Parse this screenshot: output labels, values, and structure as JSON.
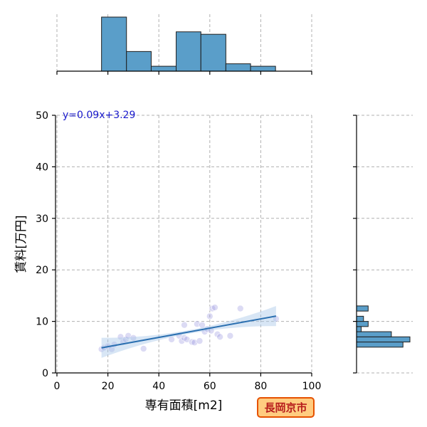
{
  "chart_data": {
    "type": "scatter",
    "title": "",
    "xlabel": "専有面積[m2]",
    "ylabel": "賃料[万円]",
    "xlim": [
      0,
      100
    ],
    "ylim": [
      0,
      50
    ],
    "x_ticks": [
      0,
      20,
      40,
      60,
      80,
      100
    ],
    "y_ticks": [
      0,
      10,
      20,
      30,
      40,
      50
    ],
    "grid": true,
    "annotation": "y=0.09x+3.29",
    "regression": {
      "slope": 0.09,
      "intercept": 3.29,
      "x_range": [
        17.5,
        86
      ]
    },
    "points": [
      {
        "x": 17.5,
        "y": 4.6
      },
      {
        "x": 18.5,
        "y": 4.9
      },
      {
        "x": 20,
        "y": 5.2
      },
      {
        "x": 21.5,
        "y": 4.6
      },
      {
        "x": 22.5,
        "y": 5.5
      },
      {
        "x": 25,
        "y": 7.0
      },
      {
        "x": 26,
        "y": 6.0
      },
      {
        "x": 27,
        "y": 6.5
      },
      {
        "x": 28,
        "y": 7.2
      },
      {
        "x": 30,
        "y": 6.8
      },
      {
        "x": 34,
        "y": 4.7
      },
      {
        "x": 45,
        "y": 6.5
      },
      {
        "x": 48,
        "y": 7.2
      },
      {
        "x": 49,
        "y": 6.2
      },
      {
        "x": 50,
        "y": 6.8
      },
      {
        "x": 50,
        "y": 9.3
      },
      {
        "x": 51,
        "y": 6.5
      },
      {
        "x": 53,
        "y": 6.0
      },
      {
        "x": 54,
        "y": 5.9
      },
      {
        "x": 55,
        "y": 9.5
      },
      {
        "x": 56,
        "y": 6.2
      },
      {
        "x": 57,
        "y": 9.3
      },
      {
        "x": 58,
        "y": 8.0
      },
      {
        "x": 59,
        "y": 8.5
      },
      {
        "x": 60,
        "y": 11.0
      },
      {
        "x": 60.5,
        "y": 8.2
      },
      {
        "x": 61,
        "y": 12.5
      },
      {
        "x": 62,
        "y": 12.7
      },
      {
        "x": 63,
        "y": 7.5
      },
      {
        "x": 64,
        "y": 7.0
      },
      {
        "x": 68,
        "y": 7.2
      },
      {
        "x": 72,
        "y": 12.5
      },
      {
        "x": 86,
        "y": 10.5
      }
    ],
    "hist_x": {
      "bins": [
        {
          "start": 17.5,
          "end": 27.3,
          "count": 11
        },
        {
          "start": 27.3,
          "end": 37.0,
          "count": 4
        },
        {
          "start": 37.0,
          "end": 46.8,
          "count": 1
        },
        {
          "start": 46.8,
          "end": 56.5,
          "count": 8
        },
        {
          "start": 56.5,
          "end": 66.3,
          "count": 7.5
        },
        {
          "start": 66.3,
          "end": 76.0,
          "count": 1.5
        },
        {
          "start": 76.0,
          "end": 85.8,
          "count": 1
        }
      ]
    },
    "hist_y": {
      "bins": [
        {
          "start": 5.0,
          "end": 6.0,
          "count": 10
        },
        {
          "start": 6.0,
          "end": 7.0,
          "count": 11.5
        },
        {
          "start": 7.0,
          "end": 8.0,
          "count": 7.5
        },
        {
          "start": 8.0,
          "end": 9.0,
          "count": 1
        },
        {
          "start": 9.0,
          "end": 10.0,
          "count": 2.5
        },
        {
          "start": 10.0,
          "end": 11.0,
          "count": 1.5
        },
        {
          "start": 11.0,
          "end": 12.0,
          "count": 0
        },
        {
          "start": 12.0,
          "end": 13.0,
          "count": 2.5
        }
      ]
    }
  },
  "badge": {
    "label": "長岡京市"
  }
}
